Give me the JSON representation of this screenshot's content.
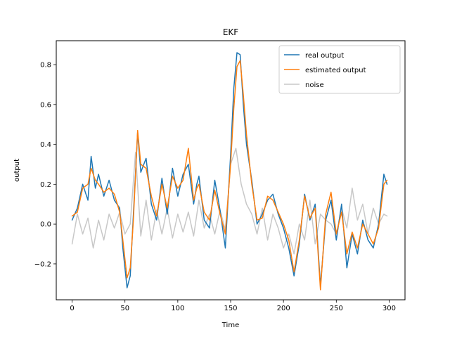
{
  "chart_data": {
    "type": "line",
    "title": "EKF",
    "xlabel": "Time",
    "ylabel": "output",
    "xlim": [
      -15,
      315
    ],
    "ylim": [
      -0.38,
      0.92
    ],
    "xticks": [
      0,
      50,
      100,
      150,
      200,
      250,
      300
    ],
    "xtick_labels": [
      "0",
      "50",
      "100",
      "150",
      "200",
      "250",
      "300"
    ],
    "yticks": [
      -0.2,
      0.0,
      0.2,
      0.4,
      0.6,
      0.8
    ],
    "ytick_labels": [
      "−0.2",
      "0.0",
      "0.2",
      "0.4",
      "0.6",
      "0.8"
    ],
    "grid": false,
    "legend_position": "top-right",
    "series": [
      {
        "name": "real output",
        "color": "#1f77b4",
        "points": [
          [
            0,
            0.02
          ],
          [
            5,
            0.08
          ],
          [
            10,
            0.2
          ],
          [
            15,
            0.12
          ],
          [
            18,
            0.34
          ],
          [
            22,
            0.18
          ],
          [
            25,
            0.25
          ],
          [
            30,
            0.14
          ],
          [
            35,
            0.22
          ],
          [
            40,
            0.12
          ],
          [
            45,
            0.08
          ],
          [
            48,
            -0.12
          ],
          [
            52,
            -0.32
          ],
          [
            55,
            -0.26
          ],
          [
            58,
            0.05
          ],
          [
            62,
            0.46
          ],
          [
            65,
            0.26
          ],
          [
            70,
            0.33
          ],
          [
            75,
            0.1
          ],
          [
            80,
            0.02
          ],
          [
            85,
            0.23
          ],
          [
            90,
            0.05
          ],
          [
            95,
            0.28
          ],
          [
            100,
            0.14
          ],
          [
            105,
            0.25
          ],
          [
            110,
            0.3
          ],
          [
            115,
            0.1
          ],
          [
            118,
            0.2
          ],
          [
            120,
            0.24
          ],
          [
            125,
            0.02
          ],
          [
            130,
            -0.02
          ],
          [
            135,
            0.22
          ],
          [
            140,
            0.07
          ],
          [
            145,
            -0.12
          ],
          [
            150,
            0.35
          ],
          [
            153,
            0.68
          ],
          [
            156,
            0.86
          ],
          [
            159,
            0.85
          ],
          [
            162,
            0.6
          ],
          [
            165,
            0.4
          ],
          [
            170,
            0.22
          ],
          [
            175,
            0.0
          ],
          [
            180,
            0.05
          ],
          [
            185,
            0.12
          ],
          [
            190,
            0.15
          ],
          [
            195,
            0.05
          ],
          [
            200,
            -0.02
          ],
          [
            205,
            -0.12
          ],
          [
            210,
            -0.26
          ],
          [
            215,
            -0.1
          ],
          [
            220,
            0.15
          ],
          [
            225,
            0.02
          ],
          [
            230,
            0.1
          ],
          [
            235,
            -0.31
          ],
          [
            240,
            0.02
          ],
          [
            245,
            0.12
          ],
          [
            250,
            -0.08
          ],
          [
            255,
            0.1
          ],
          [
            260,
            -0.22
          ],
          [
            265,
            -0.05
          ],
          [
            270,
            -0.15
          ],
          [
            275,
            0.02
          ],
          [
            280,
            -0.08
          ],
          [
            285,
            -0.12
          ],
          [
            290,
            0.0
          ],
          [
            295,
            0.25
          ],
          [
            298,
            0.2
          ]
        ]
      },
      {
        "name": "estimated output",
        "color": "#ff7f0e",
        "points": [
          [
            0,
            0.04
          ],
          [
            5,
            0.06
          ],
          [
            10,
            0.18
          ],
          [
            15,
            0.2
          ],
          [
            18,
            0.28
          ],
          [
            22,
            0.22
          ],
          [
            25,
            0.2
          ],
          [
            30,
            0.16
          ],
          [
            35,
            0.18
          ],
          [
            40,
            0.15
          ],
          [
            45,
            0.06
          ],
          [
            48,
            -0.08
          ],
          [
            52,
            -0.27
          ],
          [
            55,
            -0.22
          ],
          [
            58,
            0.02
          ],
          [
            62,
            0.47
          ],
          [
            65,
            0.3
          ],
          [
            70,
            0.28
          ],
          [
            75,
            0.14
          ],
          [
            80,
            0.04
          ],
          [
            85,
            0.2
          ],
          [
            90,
            0.08
          ],
          [
            95,
            0.24
          ],
          [
            100,
            0.18
          ],
          [
            105,
            0.22
          ],
          [
            110,
            0.38
          ],
          [
            115,
            0.12
          ],
          [
            118,
            0.18
          ],
          [
            120,
            0.2
          ],
          [
            125,
            0.06
          ],
          [
            130,
            0.02
          ],
          [
            135,
            0.17
          ],
          [
            140,
            0.05
          ],
          [
            145,
            -0.05
          ],
          [
            150,
            0.3
          ],
          [
            153,
            0.58
          ],
          [
            156,
            0.79
          ],
          [
            159,
            0.82
          ],
          [
            162,
            0.65
          ],
          [
            165,
            0.45
          ],
          [
            170,
            0.2
          ],
          [
            175,
            0.02
          ],
          [
            180,
            0.03
          ],
          [
            185,
            0.14
          ],
          [
            190,
            0.12
          ],
          [
            195,
            0.06
          ],
          [
            200,
            0.0
          ],
          [
            205,
            -0.08
          ],
          [
            210,
            -0.24
          ],
          [
            215,
            -0.08
          ],
          [
            220,
            0.14
          ],
          [
            225,
            0.03
          ],
          [
            230,
            0.08
          ],
          [
            235,
            -0.33
          ],
          [
            240,
            0.05
          ],
          [
            245,
            0.16
          ],
          [
            250,
            -0.05
          ],
          [
            255,
            0.06
          ],
          [
            260,
            -0.15
          ],
          [
            265,
            -0.04
          ],
          [
            270,
            -0.12
          ],
          [
            275,
            0.0
          ],
          [
            280,
            -0.05
          ],
          [
            285,
            -0.1
          ],
          [
            290,
            -0.02
          ],
          [
            295,
            0.2
          ],
          [
            298,
            0.22
          ]
        ]
      },
      {
        "name": "noise",
        "color": "#c8c8c8",
        "points": [
          [
            0,
            -0.1
          ],
          [
            5,
            0.05
          ],
          [
            10,
            -0.05
          ],
          [
            15,
            0.03
          ],
          [
            20,
            -0.12
          ],
          [
            25,
            0.02
          ],
          [
            30,
            -0.08
          ],
          [
            35,
            0.05
          ],
          [
            40,
            -0.02
          ],
          [
            45,
            0.06
          ],
          [
            50,
            -0.05
          ],
          [
            55,
            0.0
          ],
          [
            60,
            0.36
          ],
          [
            65,
            -0.06
          ],
          [
            70,
            0.12
          ],
          [
            75,
            -0.08
          ],
          [
            80,
            0.07
          ],
          [
            85,
            -0.05
          ],
          [
            90,
            0.08
          ],
          [
            95,
            -0.07
          ],
          [
            100,
            0.05
          ],
          [
            105,
            -0.04
          ],
          [
            110,
            0.06
          ],
          [
            115,
            -0.06
          ],
          [
            120,
            0.12
          ],
          [
            125,
            -0.02
          ],
          [
            130,
            0.05
          ],
          [
            135,
            -0.05
          ],
          [
            140,
            0.07
          ],
          [
            145,
            -0.03
          ],
          [
            150,
            0.3
          ],
          [
            155,
            0.38
          ],
          [
            160,
            0.2
          ],
          [
            165,
            0.1
          ],
          [
            170,
            0.05
          ],
          [
            175,
            -0.05
          ],
          [
            180,
            0.08
          ],
          [
            185,
            -0.08
          ],
          [
            190,
            0.05
          ],
          [
            195,
            -0.02
          ],
          [
            200,
            -0.12
          ],
          [
            205,
            -0.05
          ],
          [
            210,
            -0.15
          ],
          [
            215,
            0.0
          ],
          [
            220,
            -0.08
          ],
          [
            225,
            0.12
          ],
          [
            230,
            -0.1
          ],
          [
            235,
            0.05
          ],
          [
            240,
            0.02
          ],
          [
            245,
            0.0
          ],
          [
            250,
            -0.05
          ],
          [
            255,
            0.08
          ],
          [
            260,
            -0.02
          ],
          [
            265,
            0.18
          ],
          [
            270,
            0.02
          ],
          [
            275,
            0.1
          ],
          [
            280,
            -0.05
          ],
          [
            285,
            0.08
          ],
          [
            290,
            0.0
          ],
          [
            295,
            0.05
          ],
          [
            298,
            0.04
          ]
        ]
      }
    ]
  }
}
